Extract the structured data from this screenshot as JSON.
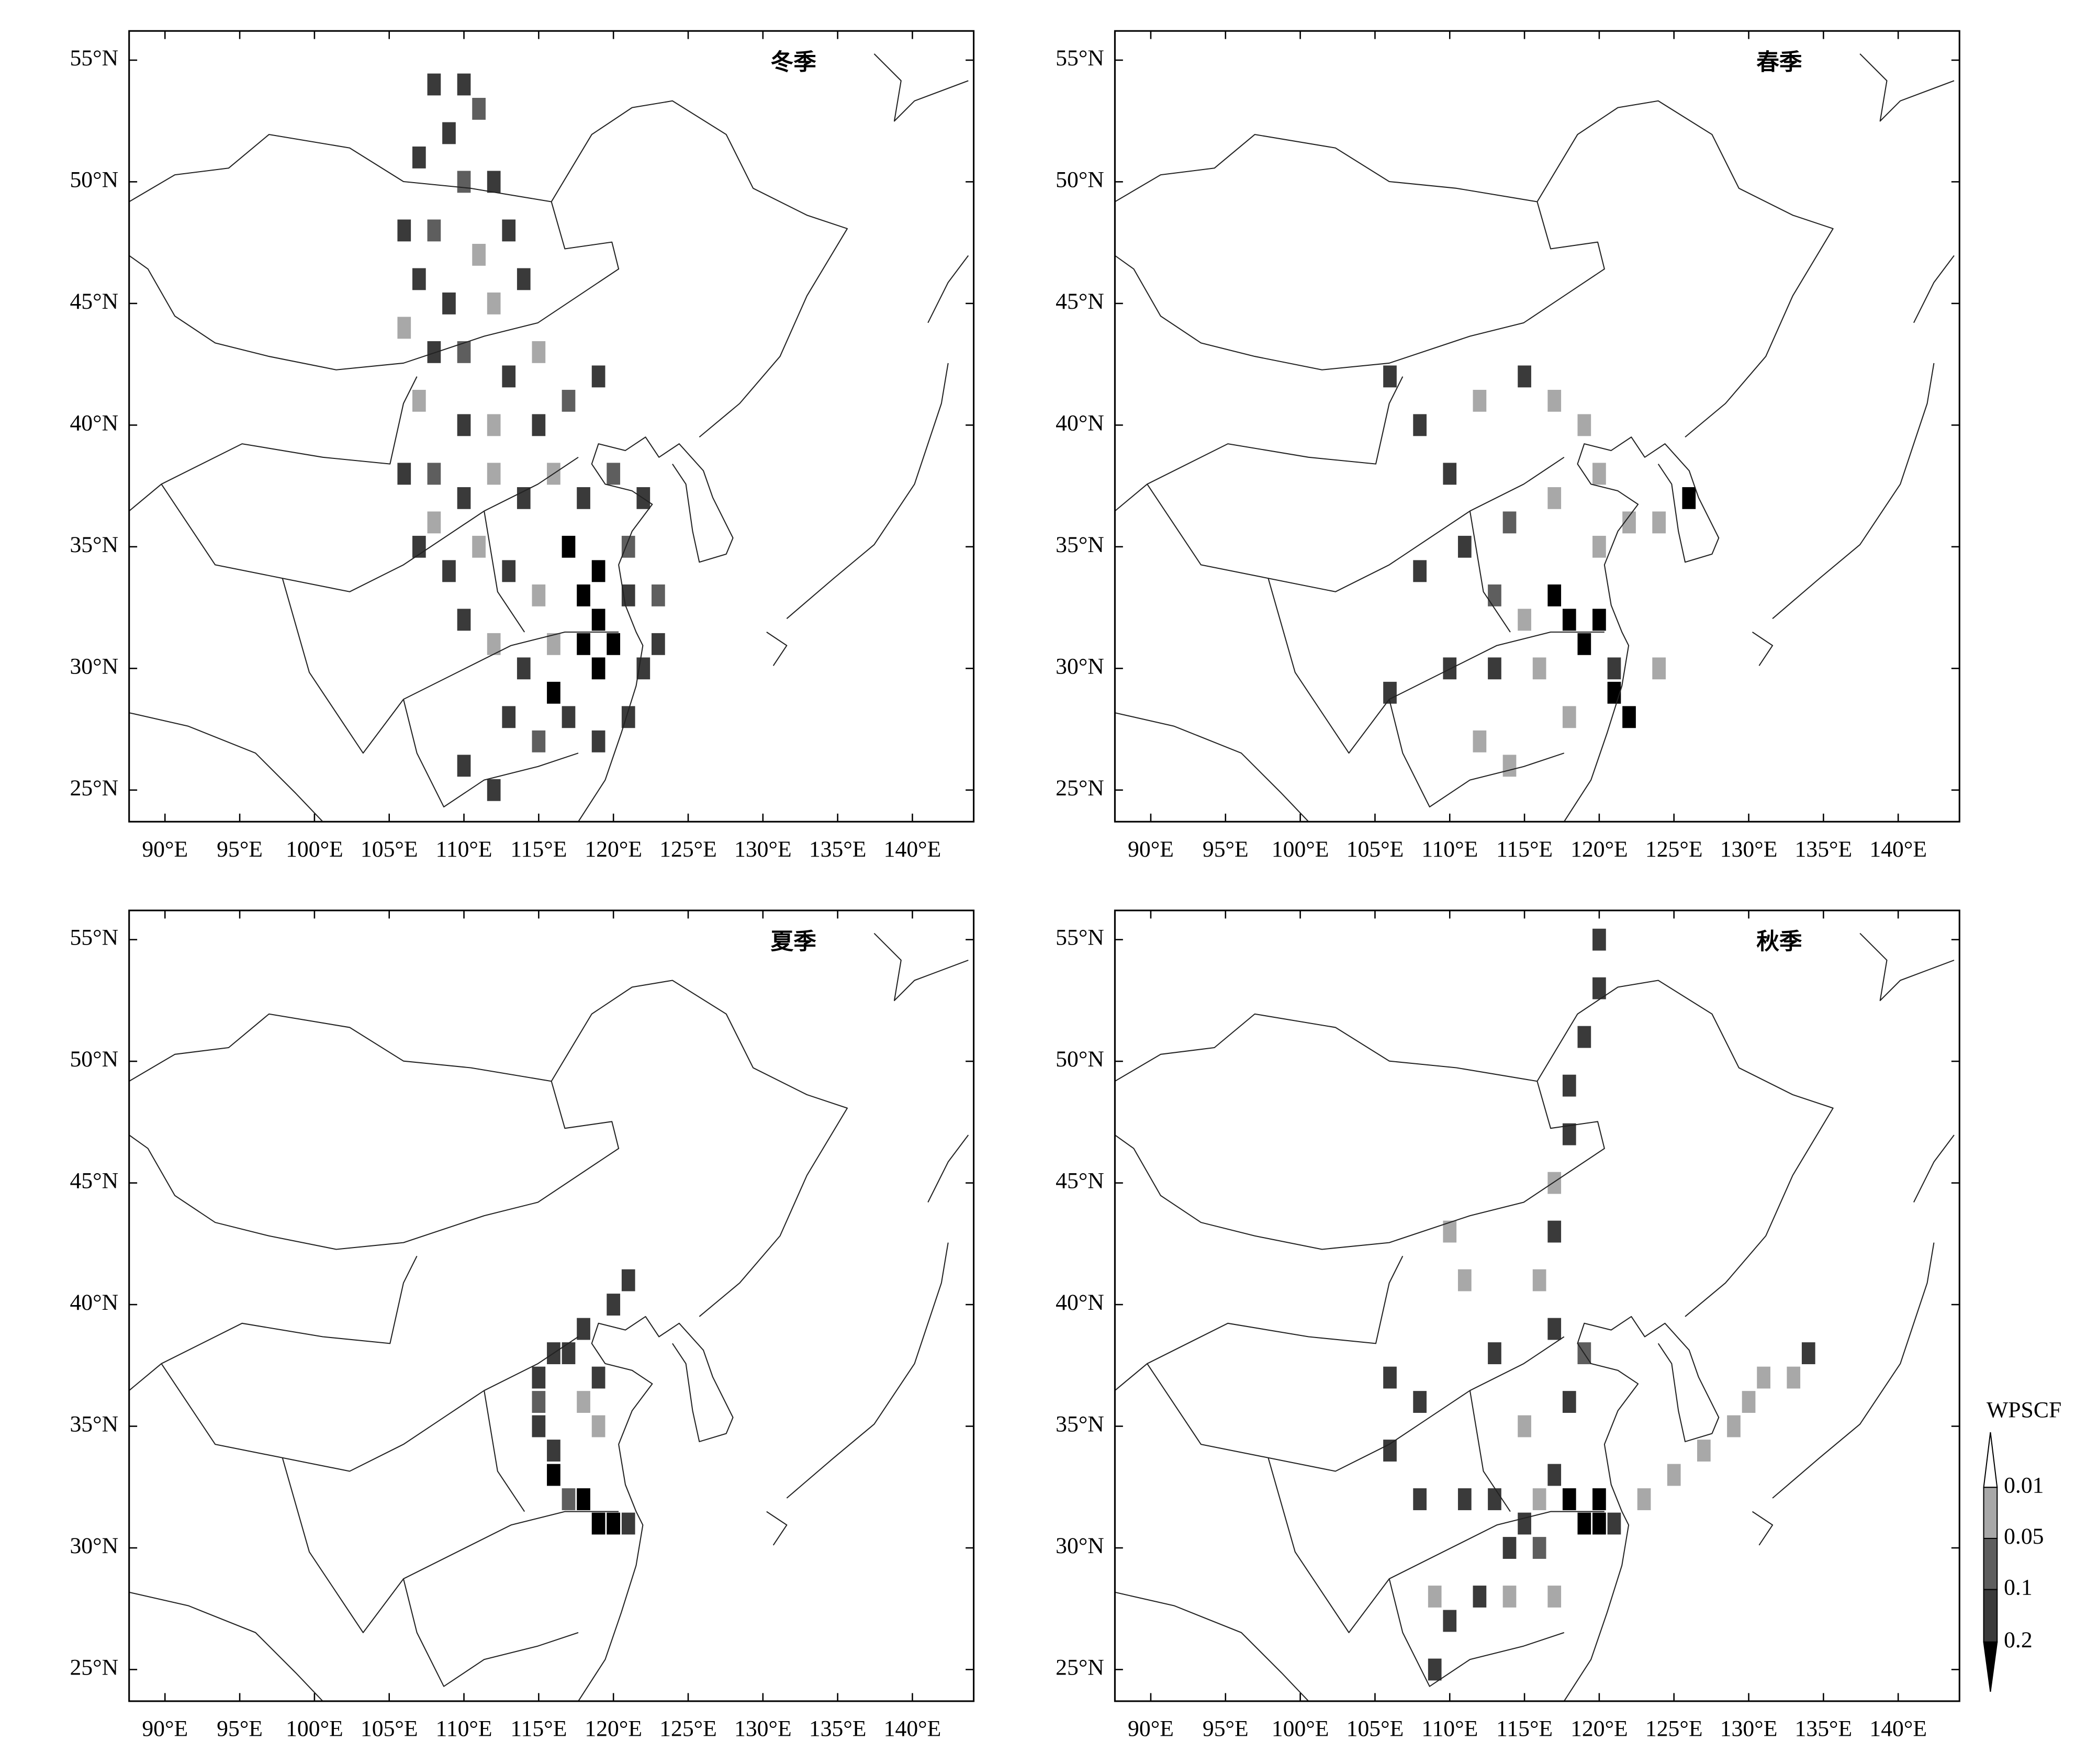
{
  "xlim": [
    87.6,
    144.1
  ],
  "ylim": [
    23.7,
    56.2
  ],
  "lon_ticks": [
    {
      "value": 90,
      "label": "90°E"
    },
    {
      "value": 95,
      "label": "95°E"
    },
    {
      "value": 100,
      "label": "100°E"
    },
    {
      "value": 105,
      "label": "105°E"
    },
    {
      "value": 110,
      "label": "110°E"
    },
    {
      "value": 115,
      "label": "115°E"
    },
    {
      "value": 120,
      "label": "120°E"
    },
    {
      "value": 125,
      "label": "125°E"
    },
    {
      "value": 130,
      "label": "130°E"
    },
    {
      "value": 135,
      "label": "135°E"
    },
    {
      "value": 140,
      "label": "140°E"
    }
  ],
  "lat_ticks": [
    {
      "value": 25,
      "label": "25°N"
    },
    {
      "value": 30,
      "label": "30°N"
    },
    {
      "value": 35,
      "label": "35°N"
    },
    {
      "value": 40,
      "label": "40°N"
    },
    {
      "value": 45,
      "label": "45°N"
    },
    {
      "value": 50,
      "label": "50°N"
    },
    {
      "value": 55,
      "label": "55°N"
    }
  ],
  "colorbar": {
    "title": "WPSCF",
    "levels": [
      0.01,
      0.05,
      0.1,
      0.2
    ],
    "colors": [
      "#ffffff",
      "#a8a8a8",
      "#5e5e5e",
      "#3a3a3a",
      "#000000"
    ]
  },
  "panels": [
    {
      "title": "冬季",
      "cells": [
        [
          108,
          54,
          0.15
        ],
        [
          110,
          54,
          0.15
        ],
        [
          111,
          53,
          0.07
        ],
        [
          109,
          52,
          0.15
        ],
        [
          107,
          51,
          0.15
        ],
        [
          110,
          50,
          0.07
        ],
        [
          112,
          50,
          0.15
        ],
        [
          106,
          48,
          0.15
        ],
        [
          108,
          48,
          0.07
        ],
        [
          111,
          47,
          0.03
        ],
        [
          113,
          48,
          0.15
        ],
        [
          107,
          46,
          0.15
        ],
        [
          109,
          45,
          0.15
        ],
        [
          112,
          45,
          0.03
        ],
        [
          114,
          46,
          0.15
        ],
        [
          106,
          44,
          0.03
        ],
        [
          108,
          43,
          0.15
        ],
        [
          110,
          43,
          0.07
        ],
        [
          113,
          42,
          0.15
        ],
        [
          115,
          43,
          0.03
        ],
        [
          107,
          41,
          0.03
        ],
        [
          110,
          40,
          0.15
        ],
        [
          112,
          40,
          0.03
        ],
        [
          115,
          40,
          0.15
        ],
        [
          117,
          41,
          0.07
        ],
        [
          119,
          42,
          0.15
        ],
        [
          106,
          38,
          0.15
        ],
        [
          108,
          38,
          0.07
        ],
        [
          110,
          37,
          0.15
        ],
        [
          112,
          38,
          0.03
        ],
        [
          114,
          37,
          0.15
        ],
        [
          116,
          38,
          0.03
        ],
        [
          118,
          37,
          0.15
        ],
        [
          120,
          38,
          0.07
        ],
        [
          122,
          37,
          0.15
        ],
        [
          107,
          35,
          0.15
        ],
        [
          109,
          34,
          0.15
        ],
        [
          111,
          35,
          0.03
        ],
        [
          113,
          34,
          0.15
        ],
        [
          115,
          33,
          0.03
        ],
        [
          117,
          35,
          0.25
        ],
        [
          119,
          34,
          0.25
        ],
        [
          118,
          33,
          0.25
        ],
        [
          119,
          32,
          0.25
        ],
        [
          120,
          31,
          0.25
        ],
        [
          118,
          31,
          0.25
        ],
        [
          119,
          30,
          0.25
        ],
        [
          121,
          33,
          0.15
        ],
        [
          122,
          30,
          0.15
        ],
        [
          110,
          32,
          0.15
        ],
        [
          112,
          31,
          0.03
        ],
        [
          114,
          30,
          0.15
        ],
        [
          116,
          29,
          0.25
        ],
        [
          117,
          28,
          0.15
        ],
        [
          113,
          28,
          0.15
        ],
        [
          119,
          27,
          0.15
        ],
        [
          121,
          28,
          0.15
        ],
        [
          110,
          26,
          0.15
        ],
        [
          112,
          25,
          0.15
        ],
        [
          115,
          27,
          0.07
        ],
        [
          123,
          31,
          0.15
        ],
        [
          123,
          33,
          0.07
        ],
        [
          121,
          35,
          0.07
        ],
        [
          116,
          31,
          0.03
        ],
        [
          108,
          36,
          0.03
        ]
      ]
    },
    {
      "title": "春季",
      "cells": [
        [
          106,
          42,
          0.15
        ],
        [
          108,
          40,
          0.15
        ],
        [
          110,
          38,
          0.15
        ],
        [
          112,
          41,
          0.03
        ],
        [
          115,
          42,
          0.15
        ],
        [
          117,
          41,
          0.03
        ],
        [
          119,
          40,
          0.03
        ],
        [
          120,
          38,
          0.03
        ],
        [
          117,
          37,
          0.03
        ],
        [
          114,
          36,
          0.07
        ],
        [
          111,
          35,
          0.15
        ],
        [
          108,
          34,
          0.15
        ],
        [
          113,
          33,
          0.07
        ],
        [
          115,
          32,
          0.03
        ],
        [
          117,
          33,
          0.25
        ],
        [
          118,
          32,
          0.25
        ],
        [
          119,
          31,
          0.25
        ],
        [
          120,
          32,
          0.25
        ],
        [
          121,
          30,
          0.15
        ],
        [
          122,
          28,
          0.25
        ],
        [
          121,
          29,
          0.25
        ],
        [
          116,
          30,
          0.03
        ],
        [
          113,
          30,
          0.15
        ],
        [
          110,
          30,
          0.15
        ],
        [
          106,
          29,
          0.15
        ],
        [
          112,
          27,
          0.03
        ],
        [
          114,
          26,
          0.03
        ],
        [
          118,
          28,
          0.03
        ],
        [
          124,
          30,
          0.03
        ],
        [
          126,
          37,
          0.25
        ],
        [
          124,
          36,
          0.03
        ],
        [
          122,
          36,
          0.03
        ],
        [
          120,
          35,
          0.03
        ]
      ]
    },
    {
      "title": "夏季",
      "cells": [
        [
          121,
          41,
          0.15
        ],
        [
          120,
          40,
          0.15
        ],
        [
          118,
          39,
          0.15
        ],
        [
          116,
          38,
          0.15
        ],
        [
          115,
          37,
          0.15
        ],
        [
          115,
          36,
          0.07
        ],
        [
          115,
          35,
          0.15
        ],
        [
          116,
          34,
          0.15
        ],
        [
          116,
          33,
          0.25
        ],
        [
          117,
          32,
          0.07
        ],
        [
          118,
          32,
          0.25
        ],
        [
          119,
          31,
          0.25
        ],
        [
          120,
          31,
          0.25
        ],
        [
          121,
          31,
          0.15
        ],
        [
          118,
          36,
          0.03
        ],
        [
          119,
          35,
          0.03
        ],
        [
          117,
          38,
          0.15
        ],
        [
          119,
          37,
          0.15
        ]
      ]
    },
    {
      "title": "秋季",
      "cells": [
        [
          120,
          55,
          0.15
        ],
        [
          120,
          53,
          0.15
        ],
        [
          119,
          51,
          0.15
        ],
        [
          118,
          49,
          0.15
        ],
        [
          118,
          47,
          0.15
        ],
        [
          117,
          45,
          0.03
        ],
        [
          117,
          43,
          0.15
        ],
        [
          116,
          41,
          0.03
        ],
        [
          117,
          39,
          0.15
        ],
        [
          110,
          43,
          0.03
        ],
        [
          111,
          41,
          0.03
        ],
        [
          113,
          38,
          0.15
        ],
        [
          106,
          37,
          0.15
        ],
        [
          108,
          36,
          0.15
        ],
        [
          106,
          34,
          0.15
        ],
        [
          108,
          32,
          0.15
        ],
        [
          111,
          32,
          0.15
        ],
        [
          113,
          32,
          0.15
        ],
        [
          115,
          31,
          0.15
        ],
        [
          116,
          32,
          0.03
        ],
        [
          117,
          33,
          0.15
        ],
        [
          118,
          32,
          0.25
        ],
        [
          119,
          31,
          0.25
        ],
        [
          120,
          32,
          0.25
        ],
        [
          120,
          31,
          0.25
        ],
        [
          121,
          31,
          0.15
        ],
        [
          116,
          30,
          0.07
        ],
        [
          114,
          30,
          0.15
        ],
        [
          112,
          28,
          0.15
        ],
        [
          110,
          27,
          0.15
        ],
        [
          109,
          25,
          0.15
        ],
        [
          114,
          28,
          0.03
        ],
        [
          117,
          28,
          0.03
        ],
        [
          123,
          32,
          0.03
        ],
        [
          125,
          33,
          0.03
        ],
        [
          127,
          34,
          0.03
        ],
        [
          129,
          35,
          0.03
        ],
        [
          130,
          36,
          0.03
        ],
        [
          131,
          37,
          0.03
        ],
        [
          133,
          37,
          0.03
        ],
        [
          134,
          38,
          0.15
        ],
        [
          115,
          35,
          0.03
        ],
        [
          118,
          36,
          0.15
        ],
        [
          119,
          38,
          0.07
        ],
        [
          109,
          28,
          0.03
        ]
      ]
    }
  ]
}
